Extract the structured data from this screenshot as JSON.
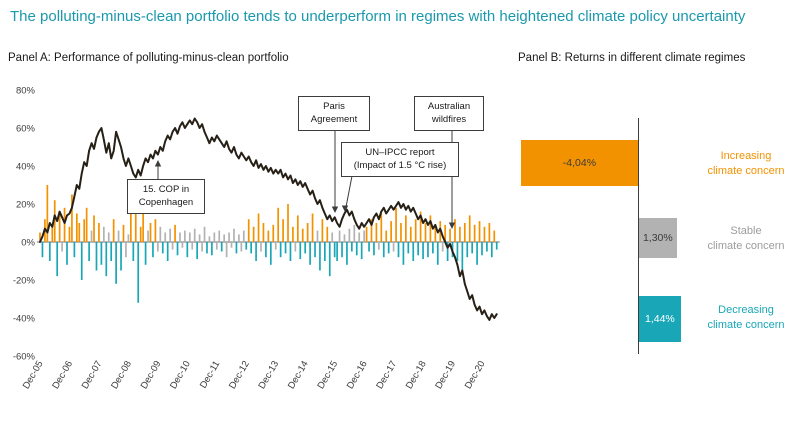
{
  "title": "The polluting-minus-clean portfolio tends to underperform in regimes with heightened climate policy uncertainty",
  "colors": {
    "title": "#1a99ac",
    "axis": "#3c3c3b",
    "increasing_orange": "#f39200",
    "stable_gray": "#b2b2b2",
    "decreasing_teal": "#19a7b8",
    "line_dark": "#262017"
  },
  "chart_data": [
    {
      "type": "line+bar",
      "title": "Panel A: Performance of polluting-minus-clean portfolio",
      "ylim": [
        -60,
        80
      ],
      "grid": false,
      "y_ticks": [
        {
          "label": "80%",
          "value": 80
        },
        {
          "label": "60%",
          "value": 60
        },
        {
          "label": "40%",
          "value": 40
        },
        {
          "label": "20%",
          "value": 20
        },
        {
          "label": "0%",
          "value": 0
        },
        {
          "label": "-20%",
          "value": -20
        },
        {
          "label": "-40%",
          "value": -40
        },
        {
          "label": "-60%",
          "value": -60
        }
      ],
      "x_tick_labels": [
        "Dec-05",
        "Dec-06",
        "Dec-07",
        "Dec-08",
        "Dec-09",
        "Dec-10",
        "Dec-11",
        "Dec-12",
        "Dec-13",
        "Dec-14",
        "Dec-15",
        "Dec-16",
        "Dec-17",
        "Dec-18",
        "Dec-19",
        "Dec-20"
      ],
      "months_per_tick": 12,
      "line_series": {
        "name": "Cumulative return of polluting-minus-clean portfolio",
        "color": "#262017",
        "values": [
          [
            0
          ],
          [
            3,
            7,
            5,
            10,
            8,
            14,
            11,
            16,
            13,
            10,
            14,
            15
          ],
          [
            18,
            24,
            30,
            28,
            36,
            42,
            40,
            48,
            52,
            49,
            55,
            58
          ],
          [
            60,
            54,
            47,
            52,
            44,
            48,
            58,
            54,
            50,
            44,
            40,
            44
          ],
          [
            40,
            36,
            34,
            38,
            35,
            40,
            44,
            42,
            46,
            44,
            48,
            46
          ],
          [
            50,
            48,
            53,
            56,
            54,
            58,
            60,
            57,
            61,
            63,
            60,
            62
          ],
          [
            64,
            62,
            65,
            63,
            60,
            62,
            58,
            55,
            52,
            55,
            53,
            56
          ],
          [
            54,
            52,
            50,
            53,
            49,
            47,
            50,
            46,
            44,
            47,
            45,
            43
          ],
          [
            45,
            42,
            40,
            43,
            39,
            41,
            38,
            40,
            37,
            39,
            36,
            38
          ],
          [
            36,
            38,
            34,
            36,
            33,
            35,
            31,
            33,
            30,
            32,
            29,
            31
          ],
          [
            28,
            25,
            27,
            23,
            20,
            22,
            18,
            15,
            12,
            14,
            11,
            13
          ],
          [
            10,
            8,
            12,
            15,
            17,
            14,
            16,
            12,
            9,
            7,
            10,
            8
          ],
          [
            10,
            12,
            9,
            13,
            15,
            12,
            16,
            18,
            15,
            17,
            19,
            17
          ],
          [
            19,
            21,
            18,
            20,
            17,
            19,
            16,
            18,
            15,
            12,
            14,
            10
          ],
          [
            12,
            9,
            11,
            7,
            9,
            5,
            7,
            3,
            0,
            -3,
            -1,
            -5
          ],
          [
            -8,
            -12,
            -18,
            -15,
            -22,
            -26,
            -30,
            -28,
            -33,
            -36,
            -34,
            -38
          ],
          [
            -36,
            -39,
            -41,
            -38,
            -40,
            -38
          ]
        ]
      },
      "bar_series": {
        "name": "Monthly returns colored by climate-concern regime",
        "values": [
          [
            5
          ],
          [
            -8,
            12,
            30,
            -10,
            8,
            22,
            -18,
            15,
            -5,
            18,
            -12,
            8
          ],
          [
            25,
            -8,
            15,
            10,
            -20,
            12,
            18,
            -10,
            6,
            14,
            -15,
            10
          ],
          [
            -12,
            8,
            -18,
            5,
            -10,
            12,
            -22,
            6,
            -15,
            9,
            -8,
            4
          ],
          [
            18,
            -10,
            25,
            -32,
            8,
            15,
            -12,
            6,
            10,
            -8,
            12,
            -5
          ],
          [
            8,
            -6,
            5,
            -10,
            7,
            -4,
            9,
            -7,
            5,
            -3,
            6,
            -8
          ],
          [
            5,
            -4,
            7,
            -9,
            4,
            -5,
            8,
            -6,
            3,
            -7,
            5,
            -4
          ],
          [
            6,
            -5,
            4,
            -8,
            5,
            -3,
            7,
            -6,
            4,
            -5,
            6,
            -4
          ],
          [
            12,
            -6,
            8,
            -10,
            15,
            -5,
            10,
            -8,
            6,
            -12,
            9,
            -4
          ],
          [
            18,
            -8,
            12,
            -6,
            20,
            -10,
            8,
            -5,
            14,
            -9,
            7,
            -6
          ],
          [
            10,
            -12,
            15,
            -8,
            6,
            -15,
            12,
            -10,
            8,
            -18,
            5,
            -8
          ],
          [
            -10,
            6,
            -8,
            4,
            -12,
            7,
            -5,
            9,
            -7,
            5,
            -9,
            6
          ],
          [
            8,
            -5,
            12,
            -7,
            10,
            -4,
            15,
            -8,
            6,
            -6,
            11,
            -5
          ],
          [
            18,
            -8,
            10,
            -12,
            14,
            -6,
            8,
            -10,
            12,
            -7,
            16,
            -9
          ],
          [
            10,
            -8,
            14,
            -6,
            8,
            -12,
            11,
            -5,
            9,
            -10,
            7,
            -8
          ],
          [
            12,
            -10,
            8,
            -15,
            10,
            -8,
            14,
            -6,
            9,
            -12,
            11,
            -7
          ],
          [
            8,
            -5,
            10,
            -8,
            6,
            -4
          ]
        ],
        "regimes": [
          "o",
          "tootootogoto",
          "otootootgoto",
          "tgtgtotgtogg",
          "ototootgotog",
          "gtgtggotgggt",
          "gggtgggtgtgg",
          "gtgggggtgggt",
          "ototogototog",
          "otototogotot",
          "ototgtototgt",
          "tgtgtgtgtgtg",
          "ototogototog",
          "otototototot",
          "otototogotot",
          "otototototot",
          "ototot"
        ]
      },
      "regime_colors": {
        "o": "#f39200",
        "g": "#b2b2b2",
        "t": "#19a7b8"
      },
      "annotations": [
        {
          "line1": "15. COP in",
          "line2": "Copenhagen"
        },
        {
          "line1": "Paris",
          "line2": "Agreement"
        },
        {
          "line1": "UN–IPCC report",
          "line2": "(Impact of 1.5 °C rise)"
        },
        {
          "line1": "Australian",
          "line2": "wildfires"
        }
      ]
    },
    {
      "type": "bar",
      "orientation": "horizontal",
      "title": "Panel B: Returns in different climate regimes",
      "categories": [
        "Increasing climate concern",
        "Stable climate concern",
        "Decreasing climate concern"
      ],
      "category_lines": [
        [
          "Increasing",
          "climate concern"
        ],
        [
          "Stable",
          "climate concern"
        ],
        [
          "Decreasing",
          "climate concern"
        ]
      ],
      "values": [
        -4.04,
        1.3,
        1.44
      ],
      "value_labels": [
        "-4,04%",
        "1,30%",
        "1,44%"
      ],
      "colors": [
        "#f39200",
        "#b2b2b2",
        "#19a7b8"
      ],
      "label_text_colors": [
        "#3c3c3b",
        "#3c3c3b",
        "#ffffff"
      ],
      "category_text_colors": [
        "#f39200",
        "#9d9d9c",
        "#19a7b8"
      ]
    }
  ]
}
